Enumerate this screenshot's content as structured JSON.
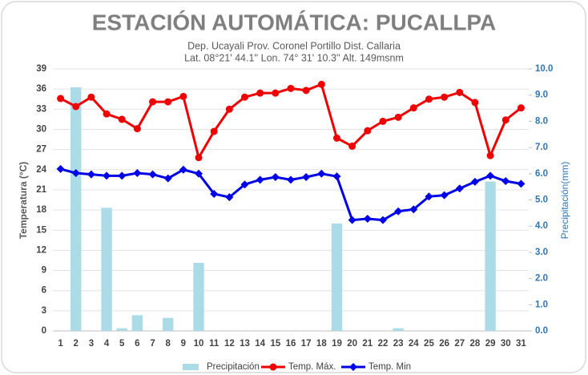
{
  "chart_data": {
    "type": "combo",
    "title": "ESTACIÓN AUTOMÁTICA: PUCALLPA",
    "subtitle": [
      "Dep. Ucayali Prov. Coronel Portillo Dist. Callaria",
      "Lat. 08°21' 44.1'' Lon. 74° 31' 10.3'' Alt. 149msnm"
    ],
    "ylabel": "Temperatura (°C)",
    "y2label": "Precipitación(mm)",
    "categories": [
      "1",
      "2",
      "3",
      "4",
      "5",
      "6",
      "7",
      "8",
      "9",
      "10",
      "11",
      "12",
      "13",
      "14",
      "15",
      "16",
      "17",
      "18",
      "19",
      "20",
      "21",
      "22",
      "23",
      "24",
      "25",
      "26",
      "27",
      "28",
      "29",
      "30",
      "31"
    ],
    "series": [
      {
        "name": "Precipitación",
        "type": "bar",
        "axis": "y2",
        "color": "#acdbe8",
        "values": [
          0,
          9.3,
          0,
          4.7,
          0.1,
          0.6,
          0,
          0.5,
          0,
          2.6,
          0,
          0,
          0,
          0,
          0,
          0,
          0,
          0,
          4.1,
          0,
          0,
          0,
          0.1,
          0,
          0,
          0,
          0,
          0,
          5.7,
          0,
          0
        ]
      },
      {
        "name": "Temp. Máx.",
        "type": "line",
        "marker": "circle",
        "color": "#ee0000",
        "values": [
          34.6,
          33.4,
          34.8,
          32.3,
          31.5,
          30.1,
          34.1,
          34.1,
          34.9,
          25.8,
          29.7,
          33.0,
          34.8,
          35.4,
          35.4,
          36.1,
          35.8,
          36.7,
          28.7,
          27.5,
          29.8,
          31.2,
          31.8,
          33.2,
          34.5,
          34.8,
          35.5,
          34.0,
          26.1,
          31.4,
          33.2
        ]
      },
      {
        "name": "Temp. Min",
        "type": "line",
        "marker": "diamond",
        "color": "#0000e6",
        "values": [
          24.1,
          23.5,
          23.3,
          23.1,
          23.1,
          23.5,
          23.3,
          22.7,
          24.0,
          23.4,
          20.4,
          19.9,
          21.8,
          22.5,
          22.9,
          22.5,
          22.9,
          23.4,
          23.0,
          16.5,
          16.7,
          16.5,
          17.8,
          18.1,
          20.0,
          20.2,
          21.2,
          22.2,
          23.1,
          22.3,
          21.9
        ]
      }
    ],
    "ylim": [
      0,
      39
    ],
    "yticks": [
      0,
      3,
      6,
      9,
      12,
      15,
      18,
      21,
      24,
      27,
      30,
      33,
      36,
      39
    ],
    "y2lim": [
      0,
      10
    ],
    "y2ticks": [
      {
        "value": 0,
        "label": "0.0"
      },
      {
        "value": 1,
        "label": "1.0"
      },
      {
        "value": 2,
        "label": "2.0"
      },
      {
        "value": 3,
        "label": "3.0"
      },
      {
        "value": 4,
        "label": "4.0"
      },
      {
        "value": 5,
        "label": "5.0"
      },
      {
        "value": 6,
        "label": "6.0"
      },
      {
        "value": 7,
        "label": "7.0"
      },
      {
        "value": 8,
        "label": "8.0"
      },
      {
        "value": 9,
        "label": "9.0"
      },
      {
        "value": 10,
        "label": "10.0"
      }
    ],
    "grid": true,
    "legend": "bottom"
  }
}
